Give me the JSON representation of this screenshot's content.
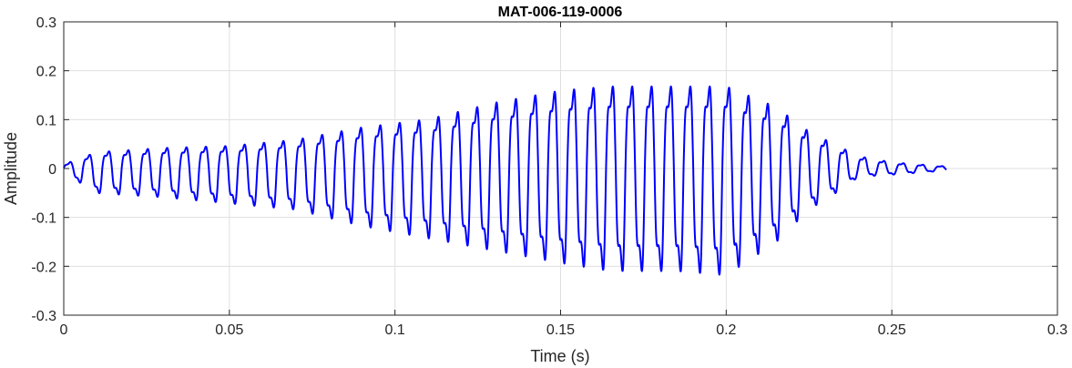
{
  "chart_data": {
    "type": "line",
    "title": "MAT-006-119-0006",
    "xlabel": "Time (s)",
    "ylabel": "Amplitude",
    "xlim": [
      0,
      0.3
    ],
    "ylim": [
      -0.3,
      0.3
    ],
    "xticks": [
      0,
      0.05,
      0.1,
      0.15,
      0.2,
      0.25,
      0.3
    ],
    "xtick_labels": [
      "0",
      "0.05",
      "0.1",
      "0.15",
      "0.2",
      "0.25",
      "0.3"
    ],
    "yticks": [
      -0.3,
      -0.2,
      -0.1,
      0,
      0.1,
      0.2,
      0.3
    ],
    "ytick_labels": [
      "-0.3",
      "-0.2",
      "-0.1",
      "0",
      "0.1",
      "0.2",
      "0.3"
    ],
    "grid": true,
    "line_color": "#0000ff",
    "signal": {
      "duration": 0.2665,
      "cycle_period": 0.00585,
      "envelope_x": [
        0,
        0.01,
        0.03,
        0.05,
        0.07,
        0.09,
        0.11,
        0.13,
        0.15,
        0.165,
        0.185,
        0.2,
        0.215,
        0.225,
        0.235,
        0.24,
        0.25,
        0.2665
      ],
      "envelope_pos": [
        0.01,
        0.04,
        0.05,
        0.055,
        0.07,
        0.1,
        0.12,
        0.16,
        0.19,
        0.2,
        0.2,
        0.2,
        0.15,
        0.09,
        0.05,
        0.03,
        0.015,
        0.005
      ],
      "envelope_neg": [
        -0.01,
        -0.06,
        -0.07,
        -0.085,
        -0.1,
        -0.14,
        -0.17,
        -0.2,
        -0.23,
        -0.25,
        -0.25,
        -0.26,
        -0.18,
        -0.1,
        -0.05,
        -0.02,
        -0.015,
        -0.005
      ]
    }
  }
}
